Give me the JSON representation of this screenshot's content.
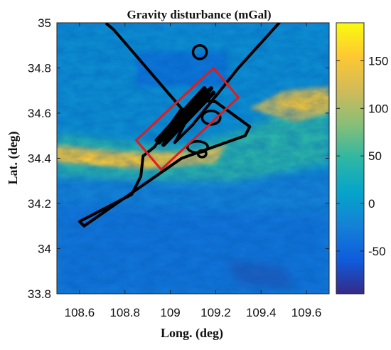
{
  "chart_data": {
    "type": "heatmap",
    "title": "Gravity disturbance (mGal)",
    "xlabel": "Long. (deg)",
    "ylabel": "Lat. (deg)",
    "xlim": [
      108.5,
      109.7
    ],
    "ylim": [
      33.8,
      35.0
    ],
    "x_ticks": [
      108.6,
      108.8,
      109,
      109.2,
      109.4,
      109.6
    ],
    "x_tick_labels": [
      "108.6",
      "108.8",
      "109",
      "109.2",
      "109.4",
      "109.6"
    ],
    "y_ticks": [
      33.8,
      34,
      34.2,
      34.4,
      34.6,
      34.8,
      35
    ],
    "y_tick_labels": [
      "33.8",
      "34",
      "34.2",
      "34.4",
      "34.6",
      "34.8",
      "35"
    ],
    "colorbar": {
      "range": [
        -95,
        190
      ],
      "ticks": [
        -50,
        0,
        50,
        100,
        150
      ],
      "tick_labels": [
        "-50",
        "0",
        "50",
        "100",
        "150"
      ],
      "colormap": "parula"
    },
    "colormap_stops": [
      "#352a87",
      "#0f5cdd",
      "#1481d6",
      "#06a4ca",
      "#2eb7a4",
      "#87bf77",
      "#d1bb59",
      "#fec832",
      "#f9fb0e"
    ],
    "flight_track": {
      "color": "#000000",
      "main_path": [
        [
          108.72,
          34.995
        ],
        [
          108.75,
          34.97
        ],
        [
          109.05,
          34.62
        ],
        [
          108.93,
          34.45
        ],
        [
          108.88,
          34.41
        ],
        [
          108.87,
          34.32
        ],
        [
          108.83,
          34.24
        ],
        [
          108.6,
          34.12
        ],
        [
          108.62,
          34.1
        ],
        [
          109.05,
          34.4
        ],
        [
          109.33,
          34.5
        ],
        [
          109.35,
          34.54
        ],
        [
          109.2,
          34.65
        ],
        [
          109.12,
          34.66
        ],
        [
          109.02,
          34.47
        ],
        [
          109.1,
          34.55
        ],
        [
          109.3,
          34.8
        ],
        [
          109.48,
          35.0
        ]
      ],
      "loops": [
        {
          "center": [
            109.13,
            34.87
          ],
          "r_lon": 0.03,
          "r_lat": 0.03
        },
        {
          "center": [
            109.12,
            34.45
          ],
          "r_lon": 0.045,
          "r_lat": 0.025
        },
        {
          "center": [
            109.14,
            34.42
          ],
          "r_lon": 0.018,
          "r_lat": 0.015
        },
        {
          "center": [
            109.18,
            34.58
          ],
          "r_lon": 0.04,
          "r_lat": 0.03
        }
      ],
      "survey_lines": [
        [
          [
            108.95,
            34.47
          ],
          [
            109.18,
            34.71
          ]
        ],
        [
          [
            108.97,
            34.46
          ],
          [
            109.19,
            34.69
          ]
        ],
        [
          [
            108.95,
            34.49
          ],
          [
            109.15,
            34.71
          ]
        ],
        [
          [
            108.97,
            34.48
          ],
          [
            109.17,
            34.68
          ]
        ],
        [
          [
            108.94,
            34.48
          ],
          [
            109.16,
            34.7
          ]
        ]
      ]
    },
    "survey_box": {
      "color": "#e41a1c",
      "corners": [
        [
          108.85,
          34.48
        ],
        [
          108.96,
          34.35
        ],
        [
          109.3,
          34.67
        ],
        [
          109.19,
          34.8
        ]
      ]
    }
  }
}
